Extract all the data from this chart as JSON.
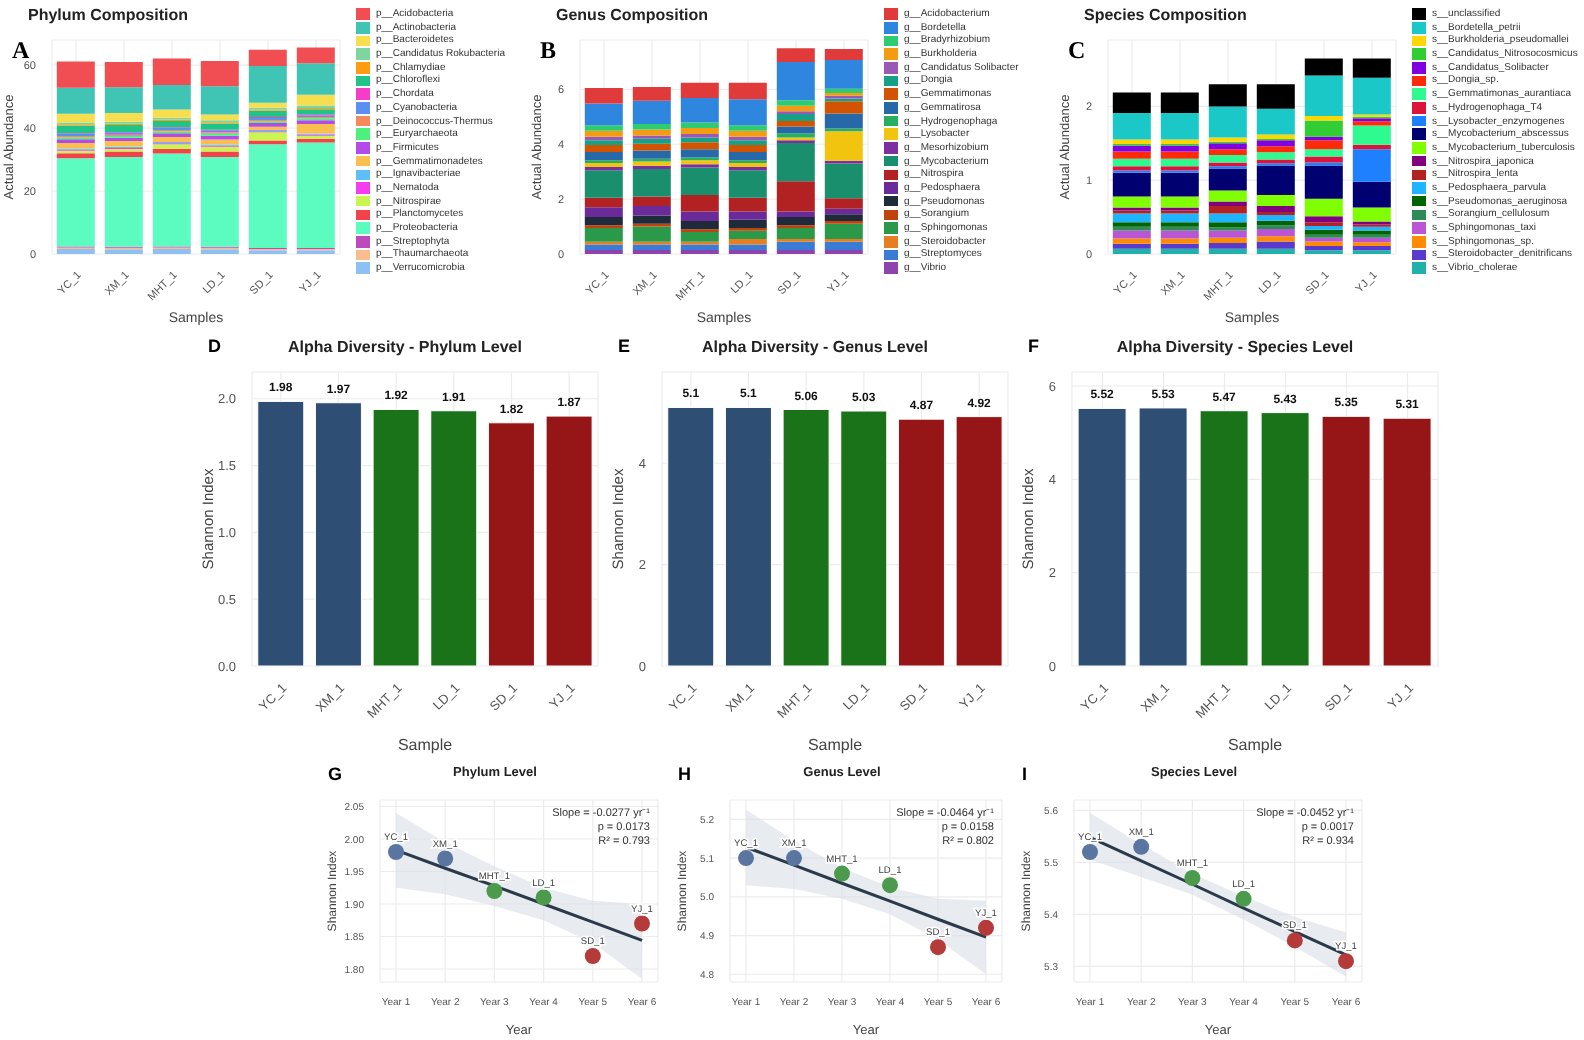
{
  "chart_data": [
    {
      "type": "bar",
      "title": "Phylum Composition",
      "annotations": [
        "A"
      ],
      "xlabel": "Samples",
      "ylabel": "Actual Abundance",
      "categories": [
        "YC_1",
        "XM_1",
        "MHT_1",
        "LD_1",
        "SD_1",
        "YJ_1"
      ],
      "stacked": true,
      "grid": true,
      "legend": "right",
      "ylim": [
        0,
        68
      ],
      "yticks": [
        0,
        20,
        40,
        60
      ],
      "series": [
        {
          "name": "p__Verrucomicrobia",
          "color": "#8ec0f4",
          "values": [
            1.6,
            1.5,
            1.6,
            1.5,
            1.2,
            1.2
          ]
        },
        {
          "name": "p__Thaumarchaeota",
          "color": "#f9bd8e",
          "values": [
            0.5,
            0.5,
            0.5,
            0.5,
            0.4,
            0.4
          ]
        },
        {
          "name": "p__Streptophyta",
          "color": "#bd4bbd",
          "values": [
            0.3,
            0.3,
            0.3,
            0.3,
            0.3,
            0.3
          ]
        },
        {
          "name": "p__Proteobacteria",
          "color": "#5cfcc0",
          "values": [
            28,
            28.5,
            29.5,
            28.5,
            33,
            33.5
          ]
        },
        {
          "name": "p__Planctomycetes",
          "color": "#f2424a",
          "values": [
            1.6,
            1.8,
            1.5,
            1.8,
            1.2,
            1.2
          ]
        },
        {
          "name": "p__Nitrospirae",
          "color": "#c8f54f",
          "values": [
            0.8,
            0.8,
            1.5,
            1.5,
            2.6,
            1.0
          ]
        },
        {
          "name": "p__Nematoda",
          "color": "#f53df0",
          "values": [
            0.3,
            0.3,
            0.3,
            0.3,
            0.3,
            0.3
          ]
        },
        {
          "name": "p__Ignavibacteriae",
          "color": "#5ebef5",
          "values": [
            0.4,
            0.4,
            0.4,
            0.4,
            0.4,
            0.4
          ]
        },
        {
          "name": "p__Gemmatimonadetes",
          "color": "#fbbf4f",
          "values": [
            1.8,
            1.8,
            1.6,
            1.6,
            1.0,
            3.0
          ]
        },
        {
          "name": "p__Firmicutes",
          "color": "#b24be8",
          "values": [
            1.2,
            1.0,
            1.2,
            1.2,
            1.2,
            1.2
          ]
        },
        {
          "name": "p__Euryarchaeota",
          "color": "#4cf07a",
          "values": [
            0.6,
            0.6,
            0.6,
            0.6,
            0.6,
            0.6
          ]
        },
        {
          "name": "p__Deinococcus-Thermus",
          "color": "#f48a5e",
          "values": [
            0.4,
            0.4,
            0.4,
            0.4,
            0.4,
            0.4
          ]
        },
        {
          "name": "p__Cyanobacteria",
          "color": "#5b8ff0",
          "values": [
            0.6,
            0.6,
            0.6,
            0.6,
            0.6,
            0.6
          ]
        },
        {
          "name": "p__Chordata",
          "color": "#f53dc8",
          "values": [
            0.3,
            0.3,
            0.3,
            0.3,
            0.3,
            0.3
          ]
        },
        {
          "name": "p__Chloroflexi",
          "color": "#1fc487",
          "values": [
            2.4,
            2.2,
            2.0,
            2.0,
            2.0,
            1.6
          ]
        },
        {
          "name": "p__Chlamydiae",
          "color": "#ff9c12",
          "values": [
            0.4,
            0.4,
            0.4,
            0.4,
            0.4,
            0.4
          ]
        },
        {
          "name": "p__Candidatus Rokubacteria",
          "color": "#7dd6a0",
          "values": [
            0.6,
            0.6,
            0.6,
            0.6,
            0.6,
            0.8
          ]
        },
        {
          "name": "p__Bacteroidetes",
          "color": "#f6de4f",
          "values": [
            2.8,
            2.8,
            2.6,
            1.8,
            1.6,
            3.4
          ]
        },
        {
          "name": "p__Actinobacteria",
          "color": "#40c4b4",
          "values": [
            8.2,
            8.2,
            7.8,
            9.0,
            11.6,
            10.0
          ]
        },
        {
          "name": "p__Acidobacteria",
          "color": "#f04e52",
          "values": [
            8.4,
            8.0,
            8.4,
            8.0,
            5.2,
            5.0
          ]
        }
      ]
    },
    {
      "type": "bar",
      "title": "Genus Composition",
      "annotations": [
        "B"
      ],
      "xlabel": "Samples",
      "ylabel": "Actual Abundance",
      "categories": [
        "YC_1",
        "XM_1",
        "MHT_1",
        "LD_1",
        "SD_1",
        "YJ_1"
      ],
      "stacked": true,
      "grid": true,
      "legend": "right",
      "ylim": [
        0,
        7.8
      ],
      "yticks": [
        0,
        2,
        4,
        6
      ],
      "series": [
        {
          "name": "g__Vibrio",
          "color": "#8e44ad",
          "values": [
            0.15,
            0.15,
            0.15,
            0.15,
            0.15,
            0.15
          ]
        },
        {
          "name": "g__Streptomyces",
          "color": "#3a7bd5",
          "values": [
            0.2,
            0.2,
            0.2,
            0.2,
            0.3,
            0.3
          ]
        },
        {
          "name": "g__Steroidobacter",
          "color": "#e67e22",
          "values": [
            0.1,
            0.1,
            0.1,
            0.2,
            0.1,
            0.1
          ]
        },
        {
          "name": "g__Sphingomonas",
          "color": "#2a9a4a",
          "values": [
            0.5,
            0.55,
            0.35,
            0.3,
            0.4,
            0.55
          ]
        },
        {
          "name": "g__Sorangium",
          "color": "#c0420c",
          "values": [
            0.1,
            0.1,
            0.1,
            0.1,
            0.1,
            0.1
          ]
        },
        {
          "name": "g__Pseudomonas",
          "color": "#1f2a3a",
          "values": [
            0.3,
            0.3,
            0.3,
            0.3,
            0.3,
            0.25
          ]
        },
        {
          "name": "g__Pedosphaera",
          "color": "#6a2a9a",
          "values": [
            0.35,
            0.35,
            0.35,
            0.3,
            0.2,
            0.2
          ]
        },
        {
          "name": "g__Nitrospira",
          "color": "#b22222",
          "values": [
            0.35,
            0.35,
            0.6,
            0.5,
            1.1,
            0.38
          ]
        },
        {
          "name": "g__Mycobacterium",
          "color": "#1a8f6e",
          "values": [
            1.0,
            1.0,
            1.0,
            1.0,
            1.4,
            1.27
          ]
        },
        {
          "name": "g__Mesorhizobium",
          "color": "#7d2fa0",
          "values": [
            0.12,
            0.12,
            0.12,
            0.12,
            0.1,
            0.1
          ]
        },
        {
          "name": "g__Lysobacter",
          "color": "#f1c40f",
          "values": [
            0.15,
            0.15,
            0.15,
            0.15,
            0.1,
            1.07
          ]
        },
        {
          "name": "g__Hydrogenophaga",
          "color": "#27ae60",
          "values": [
            0.1,
            0.1,
            0.1,
            0.1,
            0.15,
            0.1
          ]
        },
        {
          "name": "g__Gemmatirosa",
          "color": "#2768a8",
          "values": [
            0.3,
            0.3,
            0.3,
            0.3,
            0.25,
            0.55
          ]
        },
        {
          "name": "g__Gemmatimonas",
          "color": "#d35400",
          "values": [
            0.25,
            0.25,
            0.25,
            0.25,
            0.2,
            0.45
          ]
        },
        {
          "name": "g__Dongia",
          "color": "#16a085",
          "values": [
            0.18,
            0.18,
            0.18,
            0.18,
            0.25,
            0.1
          ]
        },
        {
          "name": "g__Candidatus Solibacter",
          "color": "#9b59b6",
          "values": [
            0.12,
            0.12,
            0.12,
            0.12,
            0.1,
            0.1
          ]
        },
        {
          "name": "g__Burkholderia",
          "color": "#f39c12",
          "values": [
            0.22,
            0.22,
            0.22,
            0.22,
            0.2,
            0.1
          ]
        },
        {
          "name": "g__Bradyrhizobium",
          "color": "#2ecc71",
          "values": [
            0.2,
            0.2,
            0.2,
            0.2,
            0.2,
            0.15
          ]
        },
        {
          "name": "g__Bordetella",
          "color": "#2e86de",
          "values": [
            0.8,
            0.85,
            0.9,
            0.95,
            1.4,
            1.05
          ]
        },
        {
          "name": "g__Acidobacterium",
          "color": "#e03a3a",
          "values": [
            0.56,
            0.5,
            0.55,
            0.6,
            0.5,
            0.4
          ]
        }
      ]
    },
    {
      "type": "bar",
      "title": "Species Composition",
      "annotations": [
        "C"
      ],
      "xlabel": "Samples",
      "ylabel": "Actual Abundance",
      "categories": [
        "YC_1",
        "XM_1",
        "MHT_1",
        "LD_1",
        "SD_1",
        "YJ_1"
      ],
      "stacked": true,
      "grid": true,
      "legend": "right",
      "ylim": [
        0,
        2.9
      ],
      "yticks": [
        0,
        1,
        2
      ],
      "series": [
        {
          "name": "s__Vibrio_cholerae",
          "color": "#20b2aa",
          "values": [
            0.07,
            0.07,
            0.07,
            0.07,
            0.05,
            0.05
          ]
        },
        {
          "name": "s__Steroidobacter_denitrificans",
          "color": "#5a3acd",
          "values": [
            0.07,
            0.07,
            0.08,
            0.1,
            0.06,
            0.06
          ]
        },
        {
          "name": "s__Sphingomonas_sp.",
          "color": "#ff8c00",
          "values": [
            0.07,
            0.07,
            0.07,
            0.07,
            0.06,
            0.05
          ]
        },
        {
          "name": "s__Sphingomonas_taxi",
          "color": "#ba55d3",
          "values": [
            0.11,
            0.11,
            0.1,
            0.1,
            0.05,
            0.06
          ]
        },
        {
          "name": "s__Sorangium_cellulosum",
          "color": "#2e8b57",
          "values": [
            0.05,
            0.05,
            0.04,
            0.05,
            0.04,
            0.04
          ]
        },
        {
          "name": "s__Pseudomonas_aeruginosa",
          "color": "#006400",
          "values": [
            0.06,
            0.06,
            0.07,
            0.06,
            0.07,
            0.06
          ]
        },
        {
          "name": "s__Pedosphaera_parvula",
          "color": "#1eb4ff",
          "values": [
            0.12,
            0.12,
            0.12,
            0.08,
            0.05,
            0.05
          ]
        },
        {
          "name": "s__Nitrospira_lenta",
          "color": "#b22222",
          "values": [
            0.04,
            0.04,
            0.1,
            0.04,
            0.05,
            0.03
          ]
        },
        {
          "name": "s__Nitrospira_japonica",
          "color": "#800080",
          "values": [
            0.04,
            0.04,
            0.06,
            0.08,
            0.08,
            0.04
          ]
        },
        {
          "name": "s__Mycobacterium_tuberculosis",
          "color": "#80ff00",
          "values": [
            0.15,
            0.15,
            0.15,
            0.15,
            0.24,
            0.19
          ]
        },
        {
          "name": "s__Mycobacterium_abscessus",
          "color": "#000070",
          "values": [
            0.32,
            0.32,
            0.3,
            0.4,
            0.45,
            0.35
          ]
        },
        {
          "name": "s__Lysobacter_enzymogenes",
          "color": "#1e80ff",
          "values": [
            0.03,
            0.03,
            0.03,
            0.03,
            0.04,
            0.44
          ]
        },
        {
          "name": "s__Hydrogenophaga_T4",
          "color": "#dc143c",
          "values": [
            0.06,
            0.06,
            0.05,
            0.05,
            0.08,
            0.06
          ]
        },
        {
          "name": "s__Gemmatimonas_aurantiaca",
          "color": "#2efa90",
          "values": [
            0.1,
            0.1,
            0.1,
            0.1,
            0.1,
            0.26
          ]
        },
        {
          "name": "s__Dongia_sp.",
          "color": "#ff2a0a",
          "values": [
            0.1,
            0.1,
            0.08,
            0.08,
            0.12,
            0.06
          ]
        },
        {
          "name": "s__Candidatus_Solibacter",
          "color": "#8000e0",
          "values": [
            0.08,
            0.08,
            0.08,
            0.08,
            0.05,
            0.04
          ]
        },
        {
          "name": "s__Candidatus_Nitrosocosmicus",
          "color": "#32cd32",
          "values": [
            0.02,
            0.02,
            0.02,
            0.02,
            0.22,
            0.02
          ]
        },
        {
          "name": "s__Burkholderia_pseudomallei",
          "color": "#ffd700",
          "values": [
            0.06,
            0.06,
            0.06,
            0.06,
            0.06,
            0.03
          ]
        },
        {
          "name": "s__Bordetella_petrii",
          "color": "#1ac8c8",
          "values": [
            0.36,
            0.36,
            0.42,
            0.35,
            0.55,
            0.5
          ]
        },
        {
          "name": "s__unclassified",
          "color": "#000000",
          "values": [
            0.28,
            0.28,
            0.3,
            0.33,
            0.23,
            0.26
          ]
        }
      ]
    },
    {
      "type": "bar",
      "title": "Alpha Diversity - Phylum Level",
      "annotations": [
        "D"
      ],
      "xlabel": "Sample",
      "ylabel": "Shannon Index",
      "categories": [
        "YC_1",
        "XM_1",
        "MHT_1",
        "LD_1",
        "SD_1",
        "YJ_1"
      ],
      "values": [
        1.98,
        1.97,
        1.92,
        1.91,
        1.82,
        1.87
      ],
      "colors": [
        "#2e4e73",
        "#2e4e73",
        "#1a7219",
        "#1a7219",
        "#961517",
        "#961517"
      ],
      "data_labels": true,
      "grid": true,
      "ylim": [
        0,
        2.2
      ],
      "yticks": [
        {
          "value": 0,
          "label": "0.0"
        },
        {
          "value": 0.5,
          "label": "0.5"
        },
        {
          "value": 1,
          "label": "1.0"
        },
        {
          "value": 1.5,
          "label": "1.5"
        },
        {
          "value": 2,
          "label": "2.0"
        }
      ]
    },
    {
      "type": "bar",
      "title": "Alpha Diversity - Genus Level",
      "annotations": [
        "E"
      ],
      "xlabel": "Sample",
      "ylabel": "Shannon Index",
      "categories": [
        "YC_1",
        "XM_1",
        "MHT_1",
        "LD_1",
        "SD_1",
        "YJ_1"
      ],
      "values": [
        5.1,
        5.1,
        5.06,
        5.03,
        4.87,
        4.92
      ],
      "colors": [
        "#2e4e73",
        "#2e4e73",
        "#1a7219",
        "#1a7219",
        "#961517",
        "#961517"
      ],
      "data_labels": true,
      "grid": true,
      "ylim": [
        0,
        5.8
      ],
      "yticks": [
        0,
        2,
        4
      ]
    },
    {
      "type": "bar",
      "title": "Alpha Diversity - Species Level",
      "annotations": [
        "F"
      ],
      "xlabel": "Sample",
      "ylabel": "Shannon Index",
      "categories": [
        "YC_1",
        "XM_1",
        "MHT_1",
        "LD_1",
        "SD_1",
        "YJ_1"
      ],
      "values": [
        5.52,
        5.53,
        5.47,
        5.43,
        5.35,
        5.31
      ],
      "colors": [
        "#2e4e73",
        "#2e4e73",
        "#1a7219",
        "#1a7219",
        "#961517",
        "#961517"
      ],
      "data_labels": true,
      "grid": true,
      "ylim": [
        0,
        6.3
      ],
      "yticks": [
        0,
        2,
        4,
        6
      ]
    },
    {
      "type": "scatter",
      "title": "Phylum Level",
      "xlabel": "Year",
      "ylabel": "Shannon Index",
      "grid": true,
      "categories": [
        "Year 1",
        "Year 2",
        "Year 3",
        "Year 4",
        "Year 5",
        "Year 6"
      ],
      "ylim": [
        1.78,
        2.06
      ],
      "yticks": [
        {
          "value": 1.8,
          "label": "1.80"
        },
        {
          "value": 1.85,
          "label": "1.85"
        },
        {
          "value": 1.9,
          "label": "1.90"
        },
        {
          "value": 1.95,
          "label": "1.95"
        },
        {
          "value": 2,
          "label": "2.00"
        },
        {
          "value": 2.05,
          "label": "2.05"
        }
      ],
      "annotations": [
        "G",
        "Slope = -0.0277 yr⁻¹",
        "p = 0.0173",
        "R² = 0.793",
        {
          "text": "YC_1",
          "x": "Year 1",
          "y": 1.98
        },
        {
          "text": "XM_1",
          "x": "Year 2",
          "y": 1.97
        },
        {
          "text": "MHT_1",
          "x": "Year 3",
          "y": 1.92
        },
        {
          "text": "LD_1",
          "x": "Year 4",
          "y": 1.91
        },
        {
          "text": "SD_1",
          "x": "Year 5",
          "y": 1.82
        },
        {
          "text": "YJ_1",
          "x": "Year 6",
          "y": 1.87
        }
      ],
      "series": [
        {
          "type": "line",
          "color": "#2b3a4a",
          "line_style": "solid",
          "values": [
            1.983,
            1.955,
            1.928,
            1.9,
            1.872,
            1.844
          ],
          "lower": [
            1.925,
            1.915,
            1.897,
            1.875,
            1.84,
            1.785
          ],
          "upper": [
            2.04,
            1.995,
            1.958,
            1.925,
            1.905,
            1.9
          ]
        },
        {
          "type": "scatter",
          "marker": "circle",
          "values": [
            1.98,
            1.97,
            1.92,
            1.91,
            1.82,
            1.87
          ],
          "colors": [
            "#5a76a0",
            "#5a76a0",
            "#4c9a4c",
            "#4c9a4c",
            "#b53a3a",
            "#b53a3a"
          ]
        }
      ]
    },
    {
      "type": "scatter",
      "title": "Genus Level",
      "xlabel": "Year",
      "ylabel": "Shannon Index",
      "grid": true,
      "categories": [
        "Year 1",
        "Year 2",
        "Year 3",
        "Year 4",
        "Year 5",
        "Year 6"
      ],
      "ylim": [
        4.78,
        5.25
      ],
      "yticks": [
        4.8,
        4.9,
        {
          "value": 5,
          "label": "5.0"
        },
        5.1,
        5.2
      ],
      "annotations": [
        "H",
        "Slope = -0.0464 yr⁻¹",
        "p = 0.0158",
        "R² = 0.802",
        {
          "text": "YC_1",
          "x": "Year 1",
          "y": 5.1
        },
        {
          "text": "XM_1",
          "x": "Year 2",
          "y": 5.1
        },
        {
          "text": "MHT_1",
          "x": "Year 3",
          "y": 5.06
        },
        {
          "text": "LD_1",
          "x": "Year 4",
          "y": 5.03
        },
        {
          "text": "SD_1",
          "x": "Year 5",
          "y": 4.87
        },
        {
          "text": "YJ_1",
          "x": "Year 6",
          "y": 4.92
        }
      ],
      "series": [
        {
          "type": "line",
          "color": "#2b3a4a",
          "line_style": "solid",
          "values": [
            5.128,
            5.082,
            5.035,
            4.989,
            4.942,
            4.896
          ],
          "lower": [
            5.03,
            5.02,
            4.995,
            4.955,
            4.89,
            4.8
          ],
          "upper": [
            5.225,
            5.145,
            5.075,
            5.025,
            4.995,
            4.99
          ]
        },
        {
          "type": "scatter",
          "marker": "circle",
          "values": [
            5.1,
            5.1,
            5.06,
            5.03,
            4.87,
            4.92
          ],
          "colors": [
            "#5a76a0",
            "#5a76a0",
            "#4c9a4c",
            "#4c9a4c",
            "#b53a3a",
            "#b53a3a"
          ]
        }
      ]
    },
    {
      "type": "scatter",
      "title": "Species Level",
      "xlabel": "Year",
      "ylabel": "Shannon Index",
      "grid": true,
      "categories": [
        "Year 1",
        "Year 2",
        "Year 3",
        "Year 4",
        "Year 5",
        "Year 6"
      ],
      "ylim": [
        5.27,
        5.62
      ],
      "yticks": [
        5.3,
        5.4,
        5.5,
        5.6
      ],
      "annotations": [
        "I",
        "Slope = -0.0452 yr⁻¹",
        "p = 0.0017",
        "R² = 0.934",
        {
          "text": "YC_1",
          "x": "Year 1",
          "y": 5.52
        },
        {
          "text": "XM_1",
          "x": "Year 2",
          "y": 5.53
        },
        {
          "text": "MHT_1",
          "x": "Year 3",
          "y": 5.47
        },
        {
          "text": "LD_1",
          "x": "Year 4",
          "y": 5.43
        },
        {
          "text": "SD_1",
          "x": "Year 5",
          "y": 5.35
        },
        {
          "text": "YJ_1",
          "x": "Year 6",
          "y": 5.31
        }
      ],
      "series": [
        {
          "type": "line",
          "color": "#2b3a4a",
          "line_style": "solid",
          "values": [
            5.548,
            5.503,
            5.458,
            5.412,
            5.367,
            5.322
          ],
          "lower": [
            5.505,
            5.472,
            5.438,
            5.39,
            5.338,
            5.28
          ],
          "upper": [
            5.595,
            5.535,
            5.478,
            5.435,
            5.395,
            5.365
          ]
        },
        {
          "type": "scatter",
          "marker": "circle",
          "values": [
            5.52,
            5.53,
            5.47,
            5.43,
            5.35,
            5.31
          ],
          "colors": [
            "#5a76a0",
            "#5a76a0",
            "#4c9a4c",
            "#4c9a4c",
            "#b53a3a",
            "#b53a3a"
          ]
        }
      ]
    }
  ]
}
